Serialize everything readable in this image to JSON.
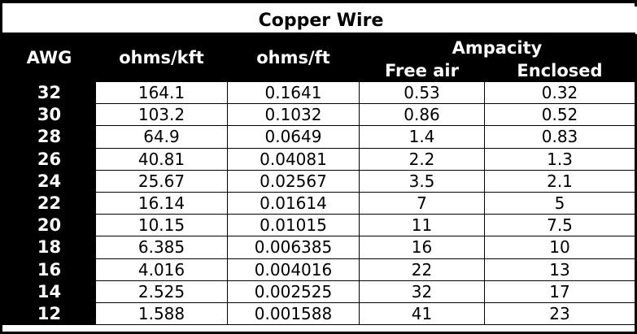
{
  "title": "Copper Wire",
  "headers": {
    "awg": "AWG",
    "ohms_kft": "ohms/kft",
    "ohms_ft": "ohms/ft",
    "ampacity": "Ampacity",
    "free_air": "Free air",
    "enclosed": "Enclosed"
  },
  "rows": [
    {
      "awg": "32",
      "ohms_kft": "164.1",
      "ohms_ft": "0.1641",
      "free_air": "0.53",
      "enclosed": "0.32"
    },
    {
      "awg": "30",
      "ohms_kft": "103.2",
      "ohms_ft": "0.1032",
      "free_air": "0.86",
      "enclosed": "0.52"
    },
    {
      "awg": "28",
      "ohms_kft": "64.9",
      "ohms_ft": "0.0649",
      "free_air": "1.4",
      "enclosed": "0.83"
    },
    {
      "awg": "26",
      "ohms_kft": "40.81",
      "ohms_ft": "0.04081",
      "free_air": "2.2",
      "enclosed": "1.3"
    },
    {
      "awg": "24",
      "ohms_kft": "25.67",
      "ohms_ft": "0.02567",
      "free_air": "3.5",
      "enclosed": "2.1"
    },
    {
      "awg": "22",
      "ohms_kft": "16.14",
      "ohms_ft": "0.01614",
      "free_air": "7",
      "enclosed": "5"
    },
    {
      "awg": "20",
      "ohms_kft": "10.15",
      "ohms_ft": "0.01015",
      "free_air": "11",
      "enclosed": "7.5"
    },
    {
      "awg": "18",
      "ohms_kft": "6.385",
      "ohms_ft": "0.006385",
      "free_air": "16",
      "enclosed": "10"
    },
    {
      "awg": "16",
      "ohms_kft": "4.016",
      "ohms_ft": "0.004016",
      "free_air": "22",
      "enclosed": "13"
    },
    {
      "awg": "14",
      "ohms_kft": "2.525",
      "ohms_ft": "0.002525",
      "free_air": "32",
      "enclosed": "17"
    },
    {
      "awg": "12",
      "ohms_kft": "1.588",
      "ohms_ft": "0.001588",
      "free_air": "41",
      "enclosed": "23"
    }
  ]
}
